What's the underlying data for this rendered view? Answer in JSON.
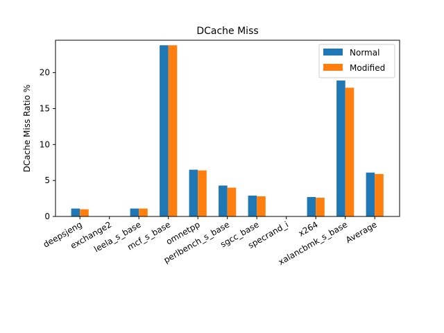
{
  "chart_data": {
    "type": "bar",
    "title": "DCache Miss",
    "xlabel": "",
    "ylabel": "DCache Miss Ratio %",
    "ylim": [
      0,
      24.5
    ],
    "yticks": [
      0,
      5,
      10,
      15,
      20
    ],
    "grid": false,
    "legend": "top-right",
    "categories": [
      "deepsjeng",
      "exchange2",
      "leela_s_base",
      "mcf_s_base",
      "omnetpp",
      "perlbench_s_base",
      "sgcc_base",
      "specrand_i",
      "x264",
      "xalancbmk_s_base",
      "Average"
    ],
    "series": [
      {
        "name": "Normal",
        "color": "#1f77b4",
        "values": [
          1.1,
          0.0,
          1.1,
          23.8,
          6.5,
          4.3,
          2.9,
          0.0,
          2.7,
          18.9,
          6.1
        ]
      },
      {
        "name": "Modified",
        "color": "#ff7f0e",
        "values": [
          1.0,
          0.0,
          1.1,
          23.8,
          6.4,
          4.0,
          2.8,
          0.0,
          2.6,
          17.9,
          5.9
        ]
      }
    ]
  }
}
